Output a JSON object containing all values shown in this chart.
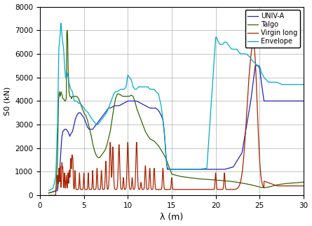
{
  "xlabel": "λ (m)",
  "ylabel": "S0 (kN)",
  "xlim": [
    0,
    30
  ],
  "ylim": [
    0,
    8000
  ],
  "xticks": [
    0,
    5,
    10,
    15,
    20,
    25,
    30
  ],
  "yticks": [
    0,
    1000,
    2000,
    3000,
    4000,
    5000,
    6000,
    7000,
    8000
  ],
  "colors": {
    "UNIV-A": "#2222bb",
    "Talgo": "#336600",
    "Virgin long": "#aa2200",
    "Envelope": "#00aacc"
  },
  "legend_labels": [
    "UNIV-A",
    "Talgo",
    "Virgin long",
    "Envelope"
  ],
  "linewidth": 0.9
}
